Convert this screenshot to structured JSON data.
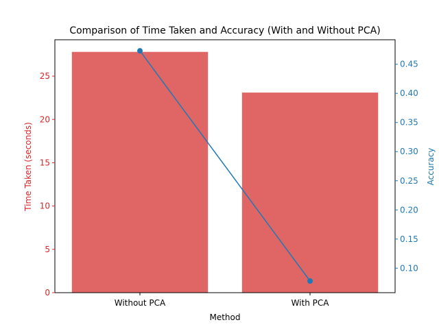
{
  "chart_data": {
    "type": "bar+line",
    "title": "Comparison of Time Taken and Accuracy (With and Without PCA)",
    "xlabel": "Method",
    "categories": [
      "Without PCA",
      "With PCA"
    ],
    "left_axis": {
      "label": "Time Taken (seconds)",
      "color": "#d62728",
      "ylim": [
        0,
        29.2
      ],
      "ticks": [
        0,
        5,
        10,
        15,
        20,
        25
      ],
      "tick_labels": [
        "0",
        "5",
        "10",
        "15",
        "20",
        "25"
      ]
    },
    "right_axis": {
      "label": "Accuracy",
      "color": "#1f77b4",
      "ylim": [
        0.058,
        0.492
      ],
      "ticks": [
        0.1,
        0.15,
        0.2,
        0.25,
        0.3,
        0.35,
        0.4,
        0.45
      ],
      "tick_labels": [
        "0.10",
        "0.15",
        "0.20",
        "0.25",
        "0.30",
        "0.35",
        "0.40",
        "0.45"
      ]
    },
    "series": [
      {
        "kind": "bar",
        "axis": "left",
        "color": "#e06666",
        "values": [
          27.8,
          23.1
        ]
      },
      {
        "kind": "line",
        "axis": "right",
        "color": "#1f77b4",
        "marker": "circle",
        "values": [
          0.473,
          0.078
        ]
      }
    ],
    "grid": false,
    "legend": "none"
  }
}
